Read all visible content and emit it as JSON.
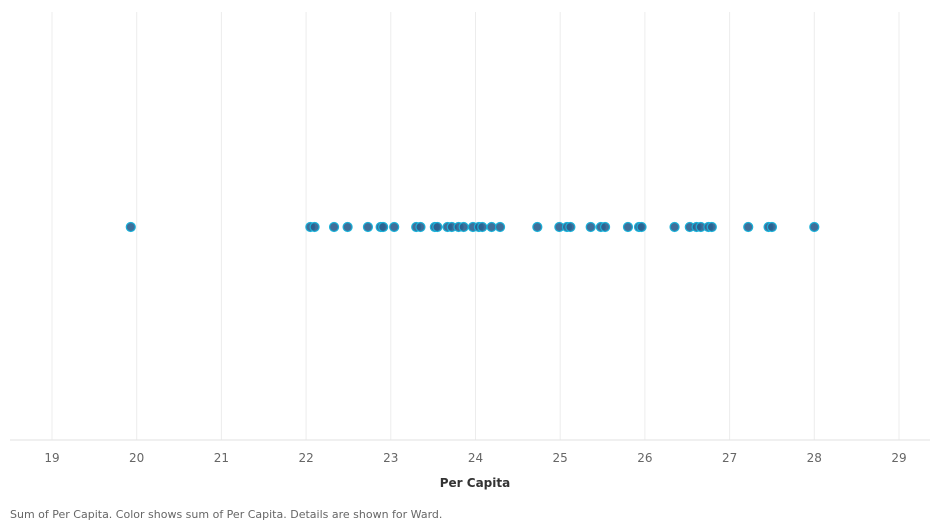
{
  "chart_data": {
    "type": "scatter",
    "xlabel": "Per Capita",
    "ylabel": "",
    "xlim": [
      18.5,
      29.4
    ],
    "xticks": [
      "19",
      "20",
      "21",
      "22",
      "23",
      "24",
      "25",
      "26",
      "27",
      "28",
      "29"
    ],
    "grid": true,
    "legend": "none",
    "point_color": "#2a5f8f",
    "point_color_light": "#1ab0d8",
    "points": [
      19.93,
      22.05,
      22.1,
      22.33,
      22.49,
      22.73,
      22.88,
      22.91,
      23.04,
      23.3,
      23.35,
      23.52,
      23.55,
      23.67,
      23.72,
      23.8,
      23.86,
      23.97,
      24.04,
      24.08,
      24.19,
      24.29,
      24.73,
      24.99,
      25.08,
      25.12,
      25.36,
      25.48,
      25.53,
      25.8,
      25.93,
      25.96,
      26.35,
      26.53,
      26.61,
      26.66,
      26.75,
      26.79,
      27.22,
      27.46,
      27.5,
      28.0
    ]
  },
  "caption": "Sum of Per Capita.  Color shows sum of Per Capita.  Details are shown for Ward."
}
